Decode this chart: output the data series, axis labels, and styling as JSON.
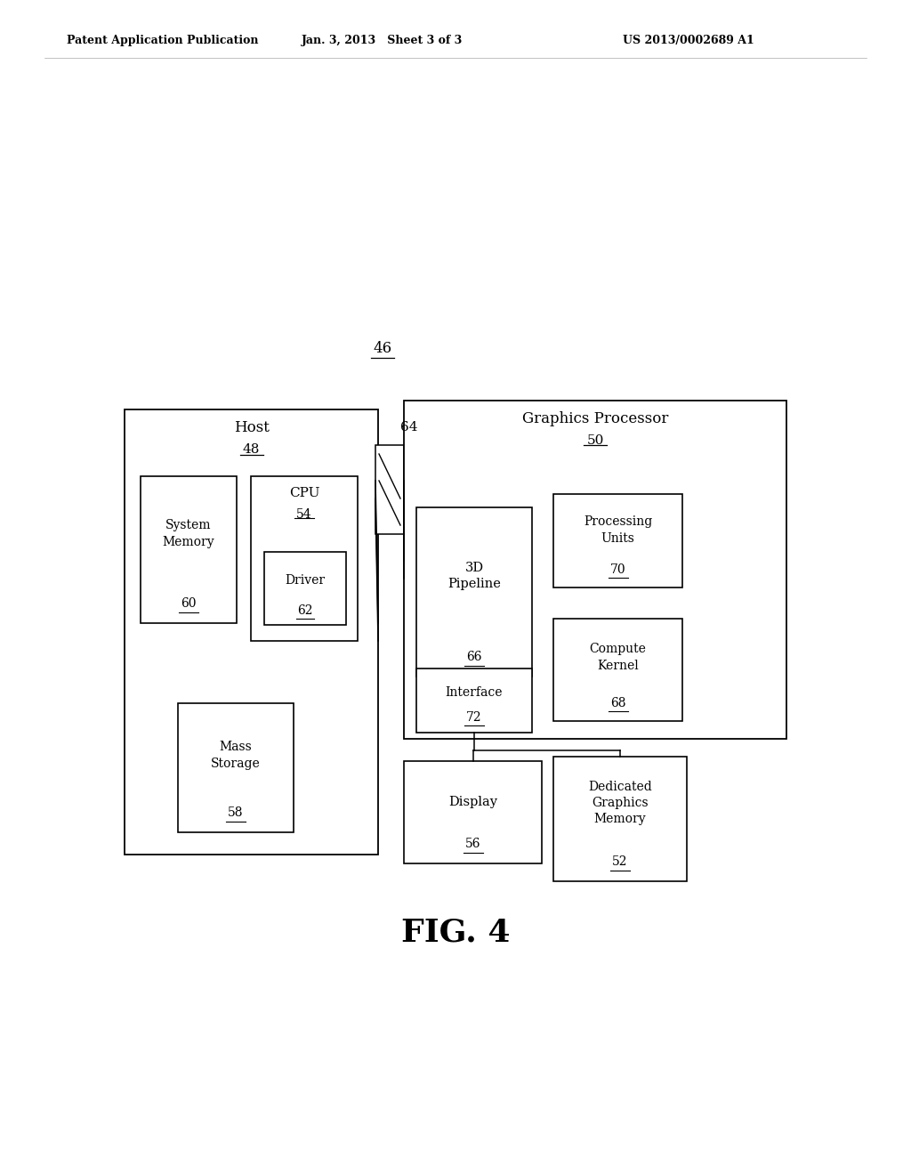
{
  "bg_color": "#ffffff",
  "header_left": "Patent Application Publication",
  "header_mid": "Jan. 3, 2013   Sheet 3 of 3",
  "header_right": "US 2013/0002689 A1",
  "label_46": "46",
  "fig_label": "FIG. 4"
}
